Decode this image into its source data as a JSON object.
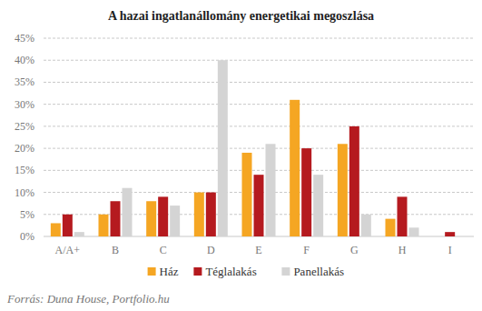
{
  "chart_data": {
    "type": "bar",
    "title": "A hazai ingatlanállomány energetikai megoszlása",
    "source": "Forrás: Duna House, Portfolio.hu",
    "categories": [
      "A/A+",
      "B",
      "C",
      "D",
      "E",
      "F",
      "G",
      "H",
      "I"
    ],
    "series": [
      {
        "name": "Ház",
        "color": "#f5a623",
        "values": [
          3,
          5,
          8,
          10,
          19,
          31,
          21,
          4,
          0
        ]
      },
      {
        "name": "Téglalakás",
        "color": "#b51a1f",
        "values": [
          5,
          8,
          9,
          10,
          14,
          20,
          25,
          9,
          1
        ]
      },
      {
        "name": "Panellakás",
        "color": "#d4d4d4",
        "values": [
          1,
          11,
          7,
          40,
          21,
          14,
          5,
          2,
          0
        ]
      }
    ],
    "ylim": [
      0,
      45
    ],
    "yticks": [
      {
        "value": 0,
        "label": "0%"
      },
      {
        "value": 5,
        "label": "5%"
      },
      {
        "value": 10,
        "label": "10%"
      },
      {
        "value": 15,
        "label": "15%"
      },
      {
        "value": 20,
        "label": "20%"
      },
      {
        "value": 25,
        "label": "25%"
      },
      {
        "value": 30,
        "label": "30%"
      },
      {
        "value": 35,
        "label": "35%"
      },
      {
        "value": 40,
        "label": "40%"
      },
      {
        "value": 45,
        "label": "45%"
      }
    ],
    "grid": true,
    "legend": "bottom"
  }
}
